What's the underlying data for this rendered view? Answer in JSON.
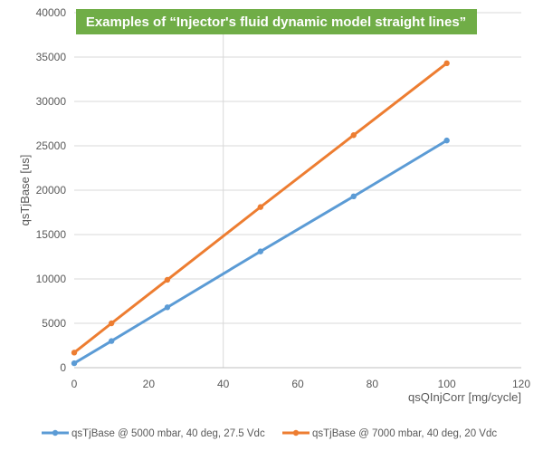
{
  "chart_data": {
    "type": "line",
    "title": "Examples of “Injector's fluid dynamic model straight lines”",
    "xlabel": "qsQInjCorr [mg/cycle]",
    "ylabel": "qsTjBase [us]",
    "xlim": [
      0,
      120
    ],
    "ylim": [
      0,
      40000
    ],
    "xticks": [
      0,
      20,
      40,
      60,
      80,
      100,
      120
    ],
    "yticks": [
      0,
      5000,
      10000,
      15000,
      20000,
      25000,
      30000,
      35000,
      40000
    ],
    "grid": "horizontal",
    "legend_position": "bottom",
    "series": [
      {
        "name": "qsTjBase @ 5000 mbar, 40 deg, 27.5 Vdc",
        "color": "#5b9bd5",
        "x": [
          0,
          10,
          25,
          50,
          75,
          100
        ],
        "y": [
          500,
          3000,
          6800,
          13100,
          19300,
          25600
        ]
      },
      {
        "name": "qsTjBase @ 7000 mbar, 40 deg, 20 Vdc",
        "color": "#ed7d31",
        "x": [
          0,
          10,
          25,
          50,
          75,
          100
        ],
        "y": [
          1700,
          5000,
          9900,
          18100,
          26200,
          34300
        ]
      }
    ],
    "title_bg_color": "#70ad47"
  }
}
